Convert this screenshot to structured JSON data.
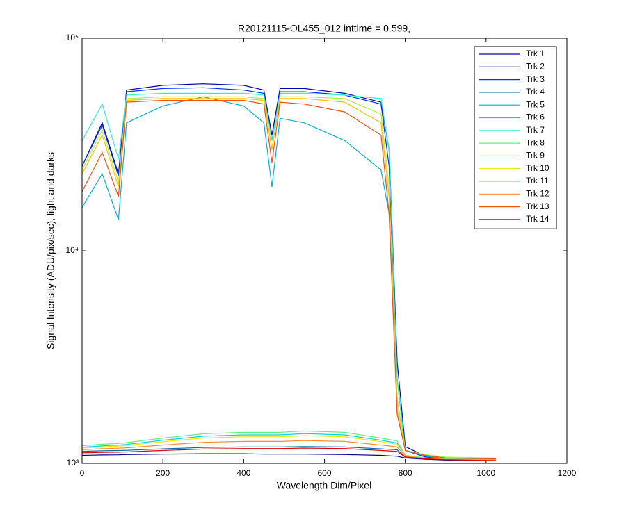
{
  "chart_data": {
    "type": "line",
    "title": "R20121115-OL455_012 inttime = 0.599,",
    "x_label": "Wavelength Dim/Pixel",
    "y_label": "Signal Intensity (ADU/pix/sec), light and darks",
    "y_scale": "log",
    "xlim": [
      0,
      1200
    ],
    "xticks": [
      0,
      200,
      400,
      600,
      800,
      1000,
      1200
    ],
    "ylim": [
      1000,
      100000
    ],
    "yticks": [
      {
        "value": 1000,
        "label": "10³"
      },
      {
        "value": 10000,
        "label": "10⁴"
      },
      {
        "value": 100000,
        "label": "10⁵"
      }
    ],
    "legend": "top-right",
    "x": [
      0,
      50,
      90,
      110,
      200,
      300,
      400,
      450,
      470,
      490,
      550,
      650,
      740,
      760,
      780,
      800,
      850,
      900,
      1024
    ],
    "series": [
      {
        "name": "Trk 1",
        "color": "#0000b0",
        "values": [
          25000,
          40000,
          23000,
          57000,
          60000,
          61000,
          60000,
          57000,
          35000,
          58000,
          58000,
          55000,
          50000,
          30000,
          3000,
          1200,
          1080,
          1050,
          1040
        ]
      },
      {
        "name": "Trk 2",
        "color": "#00008f",
        "values": [
          1090,
          1095,
          1097,
          1100,
          1105,
          1110,
          1110,
          1105,
          1105,
          1105,
          1105,
          1100,
          1090,
          1085,
          1080,
          1060,
          1045,
          1035,
          1030
        ]
      },
      {
        "name": "Trk 3",
        "color": "#0030ff",
        "values": [
          25000,
          39000,
          22500,
          56000,
          58000,
          58500,
          57000,
          55000,
          33000,
          56000,
          56000,
          54000,
          49000,
          25000,
          2500,
          1150,
          1070,
          1050,
          1040
        ]
      },
      {
        "name": "Trk 4",
        "color": "#0070b0",
        "values": [
          1140,
          1146,
          1149,
          1152,
          1170,
          1188,
          1194,
          1194,
          1194,
          1194,
          1200,
          1194,
          1170,
          1164,
          1158,
          1075,
          1050,
          1040,
          1030
        ]
      },
      {
        "name": "Trk 5",
        "color": "#00b0e0",
        "values": [
          16000,
          23000,
          14000,
          40000,
          48000,
          53000,
          48000,
          40000,
          20000,
          42000,
          40000,
          33000,
          24000,
          15000,
          2000,
          1150,
          1080,
          1050,
          1040
        ]
      },
      {
        "name": "Trk 6",
        "color": "#00d0e0",
        "values": [
          1190,
          1209,
          1219,
          1228,
          1285,
          1342,
          1361,
          1361,
          1361,
          1361,
          1380,
          1361,
          1285,
          1266,
          1247,
          1090,
          1060,
          1050,
          1040
        ]
      },
      {
        "name": "Trk 7",
        "color": "#30f0d0",
        "values": [
          33000,
          49000,
          27000,
          54000,
          55000,
          55000,
          55000,
          54000,
          33000,
          55000,
          55000,
          54000,
          52000,
          30000,
          2500,
          1150,
          1090,
          1060,
          1050
        ]
      },
      {
        "name": "Trk 8",
        "color": "#60f080",
        "values": [
          1210,
          1231,
          1241,
          1252,
          1315,
          1378,
          1399,
          1399,
          1399,
          1399,
          1420,
          1399,
          1315,
          1294,
          1273,
          1090,
          1060,
          1050,
          1040
        ]
      },
      {
        "name": "Trk 9",
        "color": "#b0f040",
        "values": [
          24000,
          37000,
          21000,
          52000,
          53000,
          53000,
          53000,
          52000,
          30000,
          53000,
          53000,
          52000,
          44000,
          20000,
          2000,
          1150,
          1100,
          1070,
          1060
        ]
      },
      {
        "name": "Trk 10",
        "color": "#e8e800",
        "values": [
          1180,
          1197,
          1206,
          1214,
          1265,
          1316,
          1333,
          1333,
          1333,
          1333,
          1350,
          1333,
          1265,
          1248,
          1231,
          1085,
          1055,
          1045,
          1035
        ]
      },
      {
        "name": "Trk 11",
        "color": "#ffc000",
        "values": [
          23000,
          35000,
          20000,
          51000,
          52000,
          52000,
          52000,
          51000,
          30000,
          52000,
          52000,
          50000,
          40000,
          18000,
          1800,
          1150,
          1090,
          1060,
          1050
        ]
      },
      {
        "name": "Trk 12",
        "color": "#ff8c30",
        "values": [
          1160,
          1172,
          1178,
          1184,
          1220,
          1256,
          1268,
          1268,
          1268,
          1268,
          1280,
          1268,
          1220,
          1208,
          1196,
          1080,
          1055,
          1045,
          1035
        ]
      },
      {
        "name": "Trk 13",
        "color": "#f05010",
        "values": [
          19000,
          29000,
          18000,
          50000,
          51000,
          51000,
          51000,
          49000,
          26000,
          50000,
          49000,
          45000,
          35000,
          15000,
          1700,
          1150,
          1090,
          1060,
          1050
        ]
      },
      {
        "name": "Trk 14",
        "color": "#e00000",
        "values": [
          1120,
          1126,
          1129,
          1132,
          1150,
          1168,
          1174,
          1174,
          1174,
          1174,
          1180,
          1174,
          1150,
          1144,
          1138,
          1070,
          1050,
          1040,
          1030
        ]
      }
    ]
  }
}
